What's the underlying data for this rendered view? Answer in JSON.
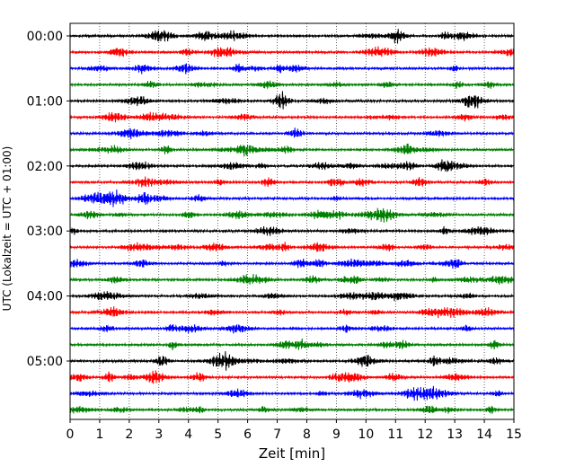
{
  "chart_data": {
    "type": "line",
    "xlabel": "Zeit  [min]",
    "ylabel": "UTC (Lokalzeit = UTC + 01:00)",
    "xlim": [
      0,
      15
    ],
    "x_ticks": [
      0,
      1,
      2,
      3,
      4,
      5,
      6,
      7,
      8,
      9,
      10,
      11,
      12,
      13,
      14,
      15
    ],
    "x_tick_labels": [
      "0",
      "1",
      "2",
      "3",
      "4",
      "5",
      "6",
      "7",
      "8",
      "9",
      "10",
      "11",
      "12",
      "13",
      "14",
      "15"
    ],
    "y_tick_labels": [
      "00:00",
      "01:00",
      "02:00",
      "03:00",
      "04:00",
      "05:00"
    ],
    "y_tick_row_index": [
      0,
      4,
      8,
      12,
      16,
      20
    ],
    "grid": "x-dotted",
    "trace_colors": [
      "#000000",
      "#ff0000",
      "#0000ff",
      "#008000"
    ],
    "series": [
      {
        "start": "00:00"
      },
      {
        "start": "00:15"
      },
      {
        "start": "00:30"
      },
      {
        "start": "00:45"
      },
      {
        "start": "01:00"
      },
      {
        "start": "01:15"
      },
      {
        "start": "01:30"
      },
      {
        "start": "01:45"
      },
      {
        "start": "02:00"
      },
      {
        "start": "02:15"
      },
      {
        "start": "02:30"
      },
      {
        "start": "02:45"
      },
      {
        "start": "03:00"
      },
      {
        "start": "03:15"
      },
      {
        "start": "03:30"
      },
      {
        "start": "03:45"
      },
      {
        "start": "04:00"
      },
      {
        "start": "04:15"
      },
      {
        "start": "04:30"
      },
      {
        "start": "04:45"
      },
      {
        "start": "05:00"
      },
      {
        "start": "05:15"
      },
      {
        "start": "05:30"
      },
      {
        "start": "05:45"
      }
    ]
  }
}
